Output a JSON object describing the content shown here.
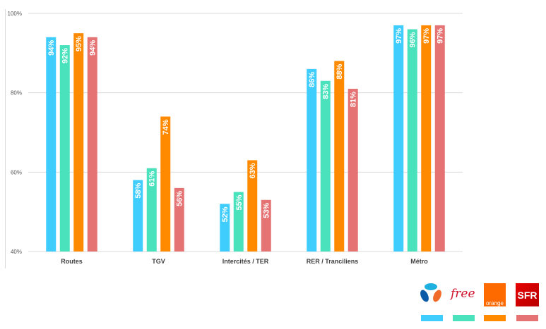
{
  "chart_data": {
    "type": "bar",
    "categories": [
      "Routes",
      "TGV",
      "Intercités / TER",
      "RER / Tranciliens",
      "Métro"
    ],
    "series": [
      {
        "operator": "Bouygues",
        "color": "#3ecdfd",
        "values": [
          94,
          58,
          52,
          86,
          97
        ]
      },
      {
        "operator": "Free",
        "color": "#4ae1bd",
        "values": [
          92,
          61,
          55,
          83,
          96
        ]
      },
      {
        "operator": "Orange",
        "color": "#ff8a00",
        "values": [
          95,
          74,
          63,
          88,
          97
        ]
      },
      {
        "operator": "SFR",
        "color": "#e57373",
        "values": [
          94,
          56,
          53,
          81,
          97
        ]
      }
    ],
    "data_labels": [
      [
        "94%",
        "58%",
        "52%",
        "86%",
        "97%"
      ],
      [
        "92%",
        "61%",
        "55%",
        "83%",
        "96%"
      ],
      [
        "95%",
        "74%",
        "63%",
        "88%",
        "97%"
      ],
      [
        "94%",
        "56%",
        "53%",
        "81%",
        "97%"
      ]
    ],
    "yticks": [
      "40%",
      "60%",
      "80%",
      "100%"
    ],
    "ylim": [
      40,
      100
    ],
    "grid": true,
    "legend": "bottom-right logos"
  },
  "legend": {
    "free": "free",
    "orange": "orange",
    "sfr": "SFR"
  }
}
